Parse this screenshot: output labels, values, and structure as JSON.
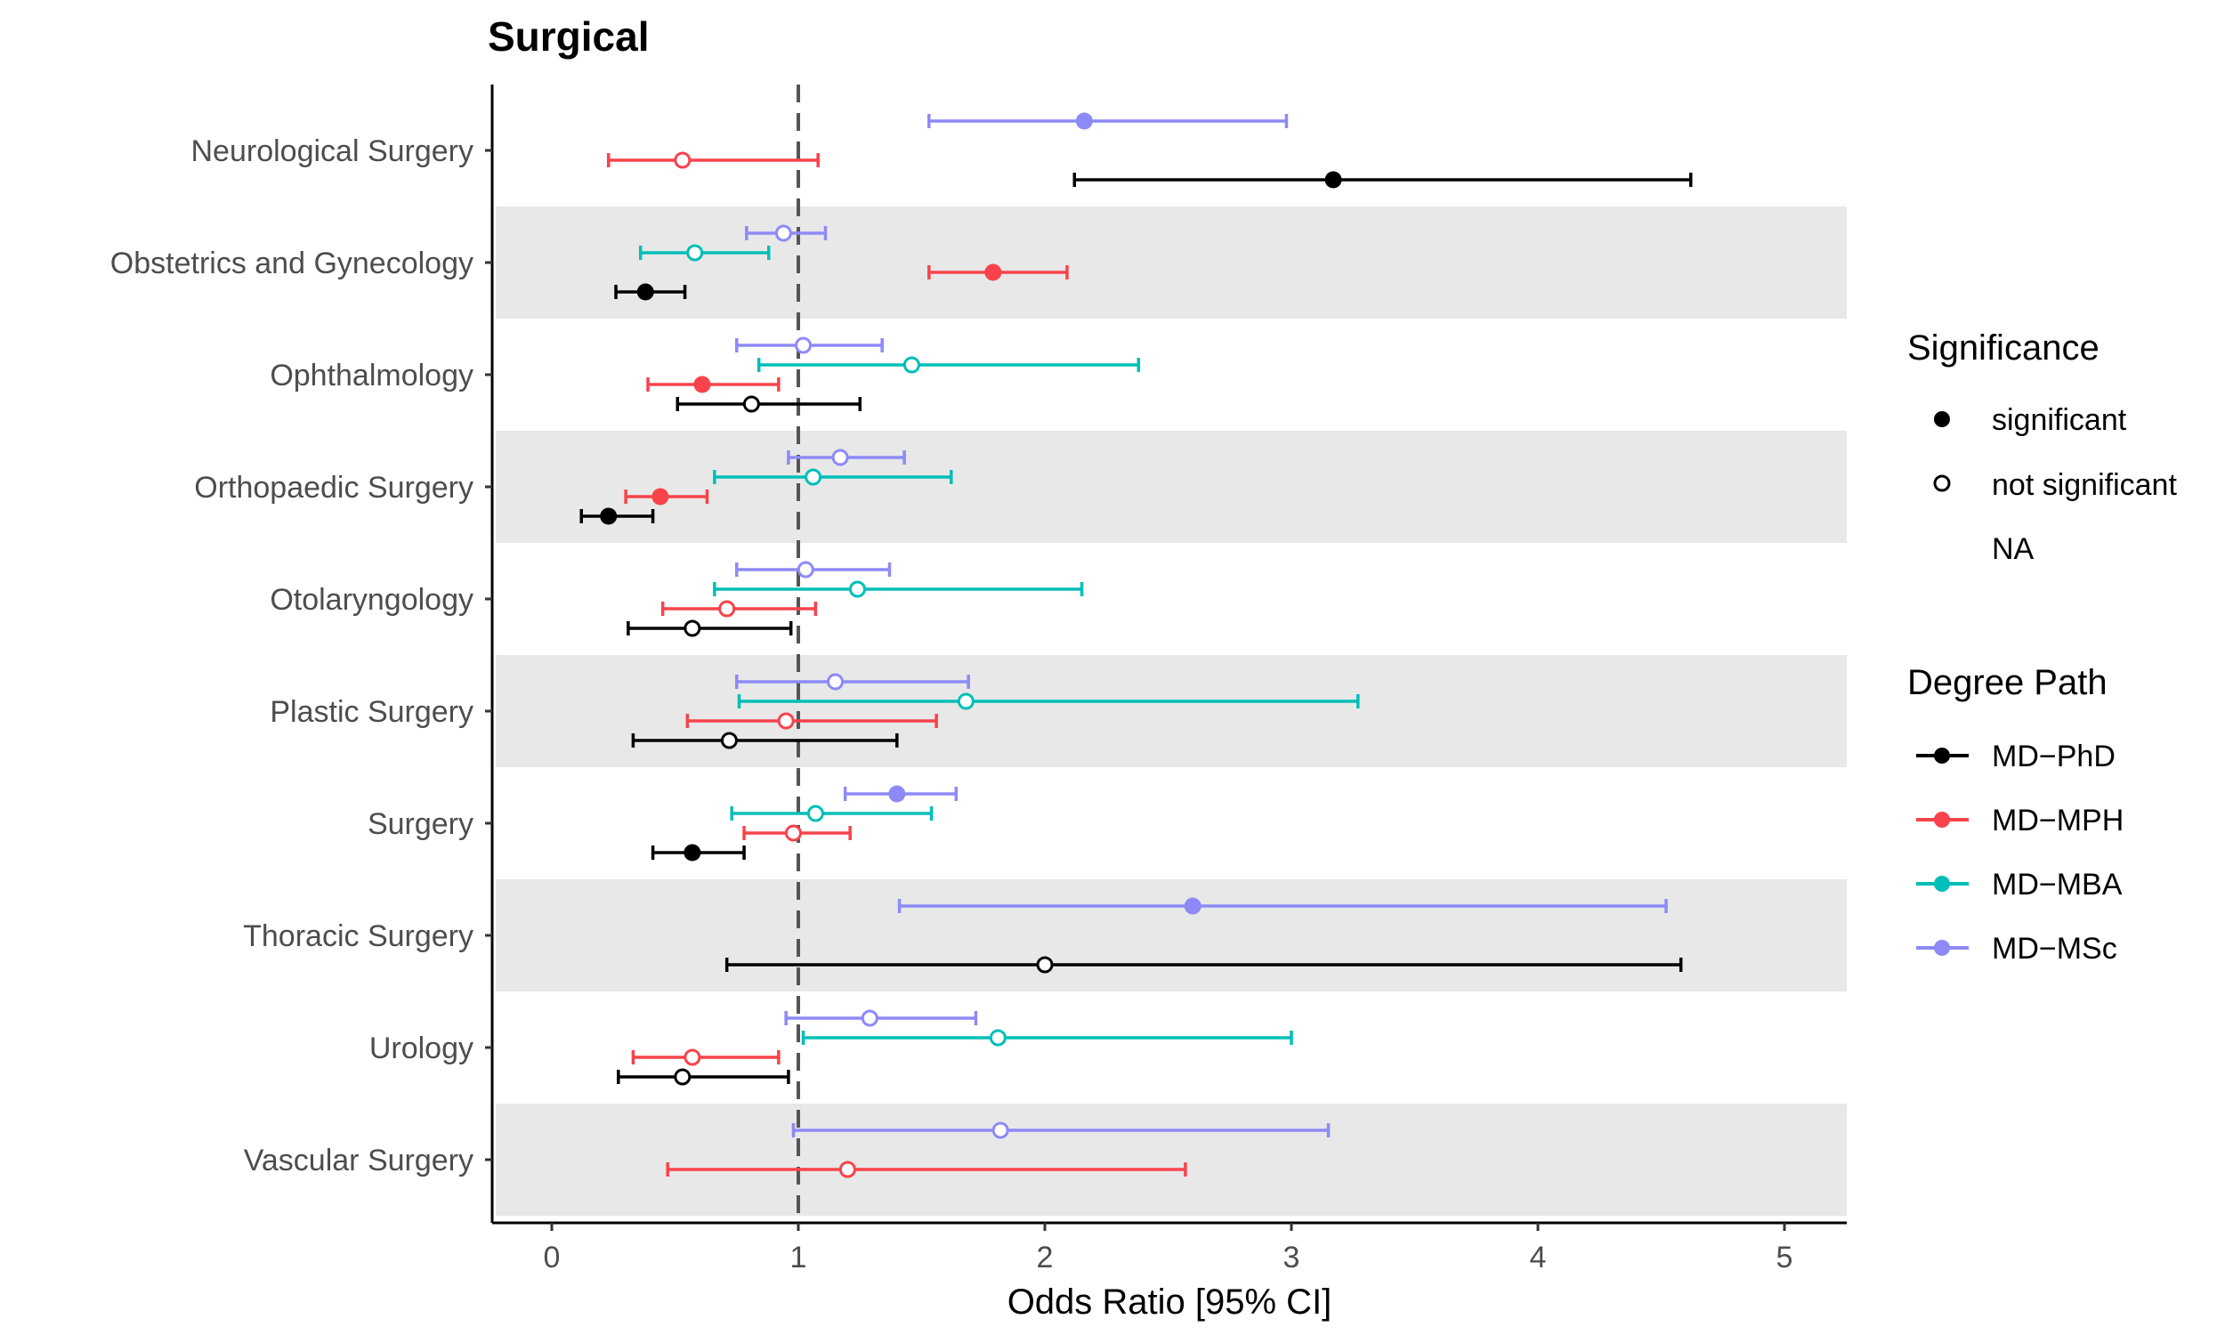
{
  "chart_data": {
    "type": "forest",
    "title": "Surgical",
    "xlabel": "Odds Ratio [95% CI]",
    "ylabel": "",
    "xlim": [
      -0.25,
      5.25
    ],
    "xticks": [
      0,
      1,
      2,
      3,
      4,
      5
    ],
    "reference_line": 1,
    "alternating_row_shading": true,
    "categories": [
      "Neurological Surgery",
      "Obstetrics and Gynecology",
      "Ophthalmology",
      "Orthopaedic Surgery",
      "Otolaryngology",
      "Plastic Surgery",
      "Surgery",
      "Thoracic Surgery",
      "Urology",
      "Vascular Surgery"
    ],
    "series": [
      {
        "name": "MD−PhD",
        "color": "#000000",
        "points": [
          {
            "category": "Neurological Surgery",
            "or": 3.17,
            "low": 2.12,
            "high": 4.62,
            "significant": true
          },
          {
            "category": "Obstetrics and Gynecology",
            "or": 0.38,
            "low": 0.26,
            "high": 0.54,
            "significant": true
          },
          {
            "category": "Ophthalmology",
            "or": 0.81,
            "low": 0.51,
            "high": 1.25,
            "significant": false
          },
          {
            "category": "Orthopaedic Surgery",
            "or": 0.23,
            "low": 0.12,
            "high": 0.41,
            "significant": true
          },
          {
            "category": "Otolaryngology",
            "or": 0.57,
            "low": 0.31,
            "high": 0.97,
            "significant": false
          },
          {
            "category": "Plastic Surgery",
            "or": 0.72,
            "low": 0.33,
            "high": 1.4,
            "significant": false
          },
          {
            "category": "Surgery",
            "or": 0.57,
            "low": 0.41,
            "high": 0.78,
            "significant": true
          },
          {
            "category": "Thoracic Surgery",
            "or": 2.0,
            "low": 0.71,
            "high": 4.58,
            "significant": false
          },
          {
            "category": "Urology",
            "or": 0.53,
            "low": 0.27,
            "high": 0.96,
            "significant": false
          }
        ]
      },
      {
        "name": "MD−MPH",
        "color": "#F8434B",
        "points": [
          {
            "category": "Neurological Surgery",
            "or": 0.53,
            "low": 0.23,
            "high": 1.08,
            "significant": false
          },
          {
            "category": "Obstetrics and Gynecology",
            "or": 1.79,
            "low": 1.53,
            "high": 2.09,
            "significant": true
          },
          {
            "category": "Ophthalmology",
            "or": 0.61,
            "low": 0.39,
            "high": 0.92,
            "significant": true
          },
          {
            "category": "Orthopaedic Surgery",
            "or": 0.44,
            "low": 0.3,
            "high": 0.63,
            "significant": true
          },
          {
            "category": "Otolaryngology",
            "or": 0.71,
            "low": 0.45,
            "high": 1.07,
            "significant": false
          },
          {
            "category": "Plastic Surgery",
            "or": 0.95,
            "low": 0.55,
            "high": 1.56,
            "significant": false
          },
          {
            "category": "Surgery",
            "or": 0.98,
            "low": 0.78,
            "high": 1.21,
            "significant": false
          },
          {
            "category": "Urology",
            "or": 0.57,
            "low": 0.33,
            "high": 0.92,
            "significant": false
          },
          {
            "category": "Vascular Surgery",
            "or": 1.2,
            "low": 0.47,
            "high": 2.57,
            "significant": false
          }
        ]
      },
      {
        "name": "MD−MBA",
        "color": "#00BFB8",
        "points": [
          {
            "category": "Obstetrics and Gynecology",
            "or": 0.58,
            "low": 0.36,
            "high": 0.88,
            "significant": false
          },
          {
            "category": "Ophthalmology",
            "or": 1.46,
            "low": 0.84,
            "high": 2.38,
            "significant": false
          },
          {
            "category": "Orthopaedic Surgery",
            "or": 1.06,
            "low": 0.66,
            "high": 1.62,
            "significant": false
          },
          {
            "category": "Otolaryngology",
            "or": 1.24,
            "low": 0.66,
            "high": 2.15,
            "significant": false
          },
          {
            "category": "Plastic Surgery",
            "or": 1.68,
            "low": 0.76,
            "high": 3.27,
            "significant": false
          },
          {
            "category": "Surgery",
            "or": 1.07,
            "low": 0.73,
            "high": 1.54,
            "significant": false
          },
          {
            "category": "Urology",
            "or": 1.81,
            "low": 1.02,
            "high": 3.0,
            "significant": false
          }
        ]
      },
      {
        "name": "MD−MSc",
        "color": "#8D8AF7",
        "points": [
          {
            "category": "Neurological Surgery",
            "or": 2.16,
            "low": 1.53,
            "high": 2.98,
            "significant": true
          },
          {
            "category": "Obstetrics and Gynecology",
            "or": 0.94,
            "low": 0.79,
            "high": 1.11,
            "significant": false
          },
          {
            "category": "Ophthalmology",
            "or": 1.02,
            "low": 0.75,
            "high": 1.34,
            "significant": false
          },
          {
            "category": "Orthopaedic Surgery",
            "or": 1.17,
            "low": 0.96,
            "high": 1.43,
            "significant": false
          },
          {
            "category": "Otolaryngology",
            "or": 1.03,
            "low": 0.75,
            "high": 1.37,
            "significant": false
          },
          {
            "category": "Plastic Surgery",
            "or": 1.15,
            "low": 0.75,
            "high": 1.69,
            "significant": false
          },
          {
            "category": "Surgery",
            "or": 1.4,
            "low": 1.19,
            "high": 1.64,
            "significant": true
          },
          {
            "category": "Thoracic Surgery",
            "or": 2.6,
            "low": 1.41,
            "high": 4.52,
            "significant": true
          },
          {
            "category": "Urology",
            "or": 1.29,
            "low": 0.95,
            "high": 1.72,
            "significant": false
          },
          {
            "category": "Vascular Surgery",
            "or": 1.82,
            "low": 0.98,
            "high": 3.15,
            "significant": false
          }
        ]
      }
    ],
    "legends": [
      {
        "title": "Significance",
        "entries": [
          {
            "label": "significant",
            "marker": "filled-circle"
          },
          {
            "label": "not significant",
            "marker": "open-circle"
          },
          {
            "label": "NA",
            "marker": "none"
          }
        ]
      },
      {
        "title": "Degree Path",
        "entries": [
          {
            "label": "MD−PhD",
            "color": "#000000"
          },
          {
            "label": "MD−MPH",
            "color": "#F8434B"
          },
          {
            "label": "MD−MBA",
            "color": "#00BFB8"
          },
          {
            "label": "MD−MSc",
            "color": "#8D8AF7"
          }
        ]
      }
    ],
    "legend_position": "right"
  }
}
